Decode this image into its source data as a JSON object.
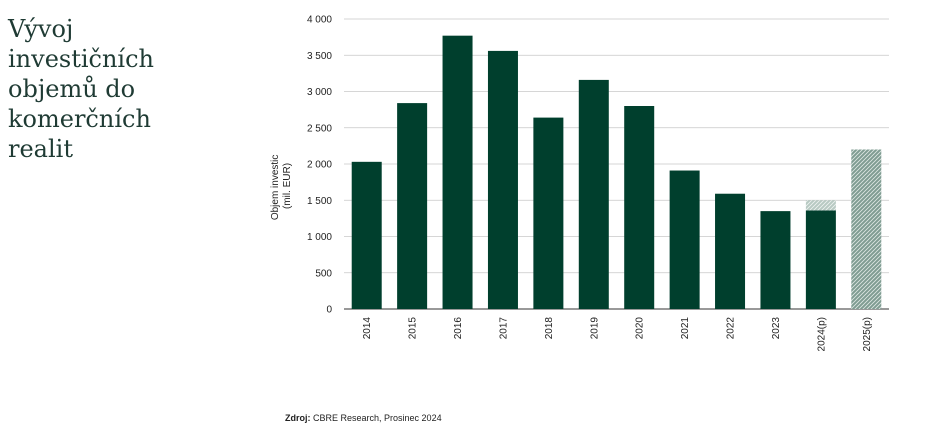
{
  "title_lines": [
    "Vývoj",
    "investičních",
    "objemů do",
    "komerčních",
    "realit"
  ],
  "source": {
    "label": "Zdroj:",
    "text": "CBRE Research, Prosinec 2024"
  },
  "chart_data": {
    "type": "bar",
    "title": "Vývoj investičních objemů do komerčních realit",
    "ylabel": [
      "Objem investic",
      "(mil. EUR)"
    ],
    "xlabel": "",
    "ylim": [
      0,
      4000
    ],
    "yticks": [
      0,
      500,
      1000,
      1500,
      2000,
      2500,
      3000,
      3500,
      4000
    ],
    "ytick_labels": [
      "0",
      "500",
      "1 000",
      "1 500",
      "2 000",
      "2 500",
      "3 000",
      "3 500",
      "4 000"
    ],
    "grid": true,
    "categories": [
      "2014",
      "2015",
      "2016",
      "2017",
      "2018",
      "2019",
      "2020",
      "2021",
      "2022",
      "2023",
      "2024(p)",
      "2025(p)"
    ],
    "values": [
      2030,
      2840,
      3770,
      3560,
      2640,
      3160,
      2800,
      1910,
      1590,
      1350,
      1360,
      2200
    ],
    "forecast_extra": [
      0,
      0,
      0,
      0,
      0,
      0,
      0,
      0,
      0,
      0,
      140,
      0
    ],
    "forecast_full": [
      false,
      false,
      false,
      false,
      false,
      false,
      false,
      false,
      false,
      false,
      false,
      true
    ],
    "colors": {
      "bar": "#003f2d",
      "forecast": "#7f9c92",
      "grid": "#c8c8c8",
      "axis": "#333333"
    }
  }
}
